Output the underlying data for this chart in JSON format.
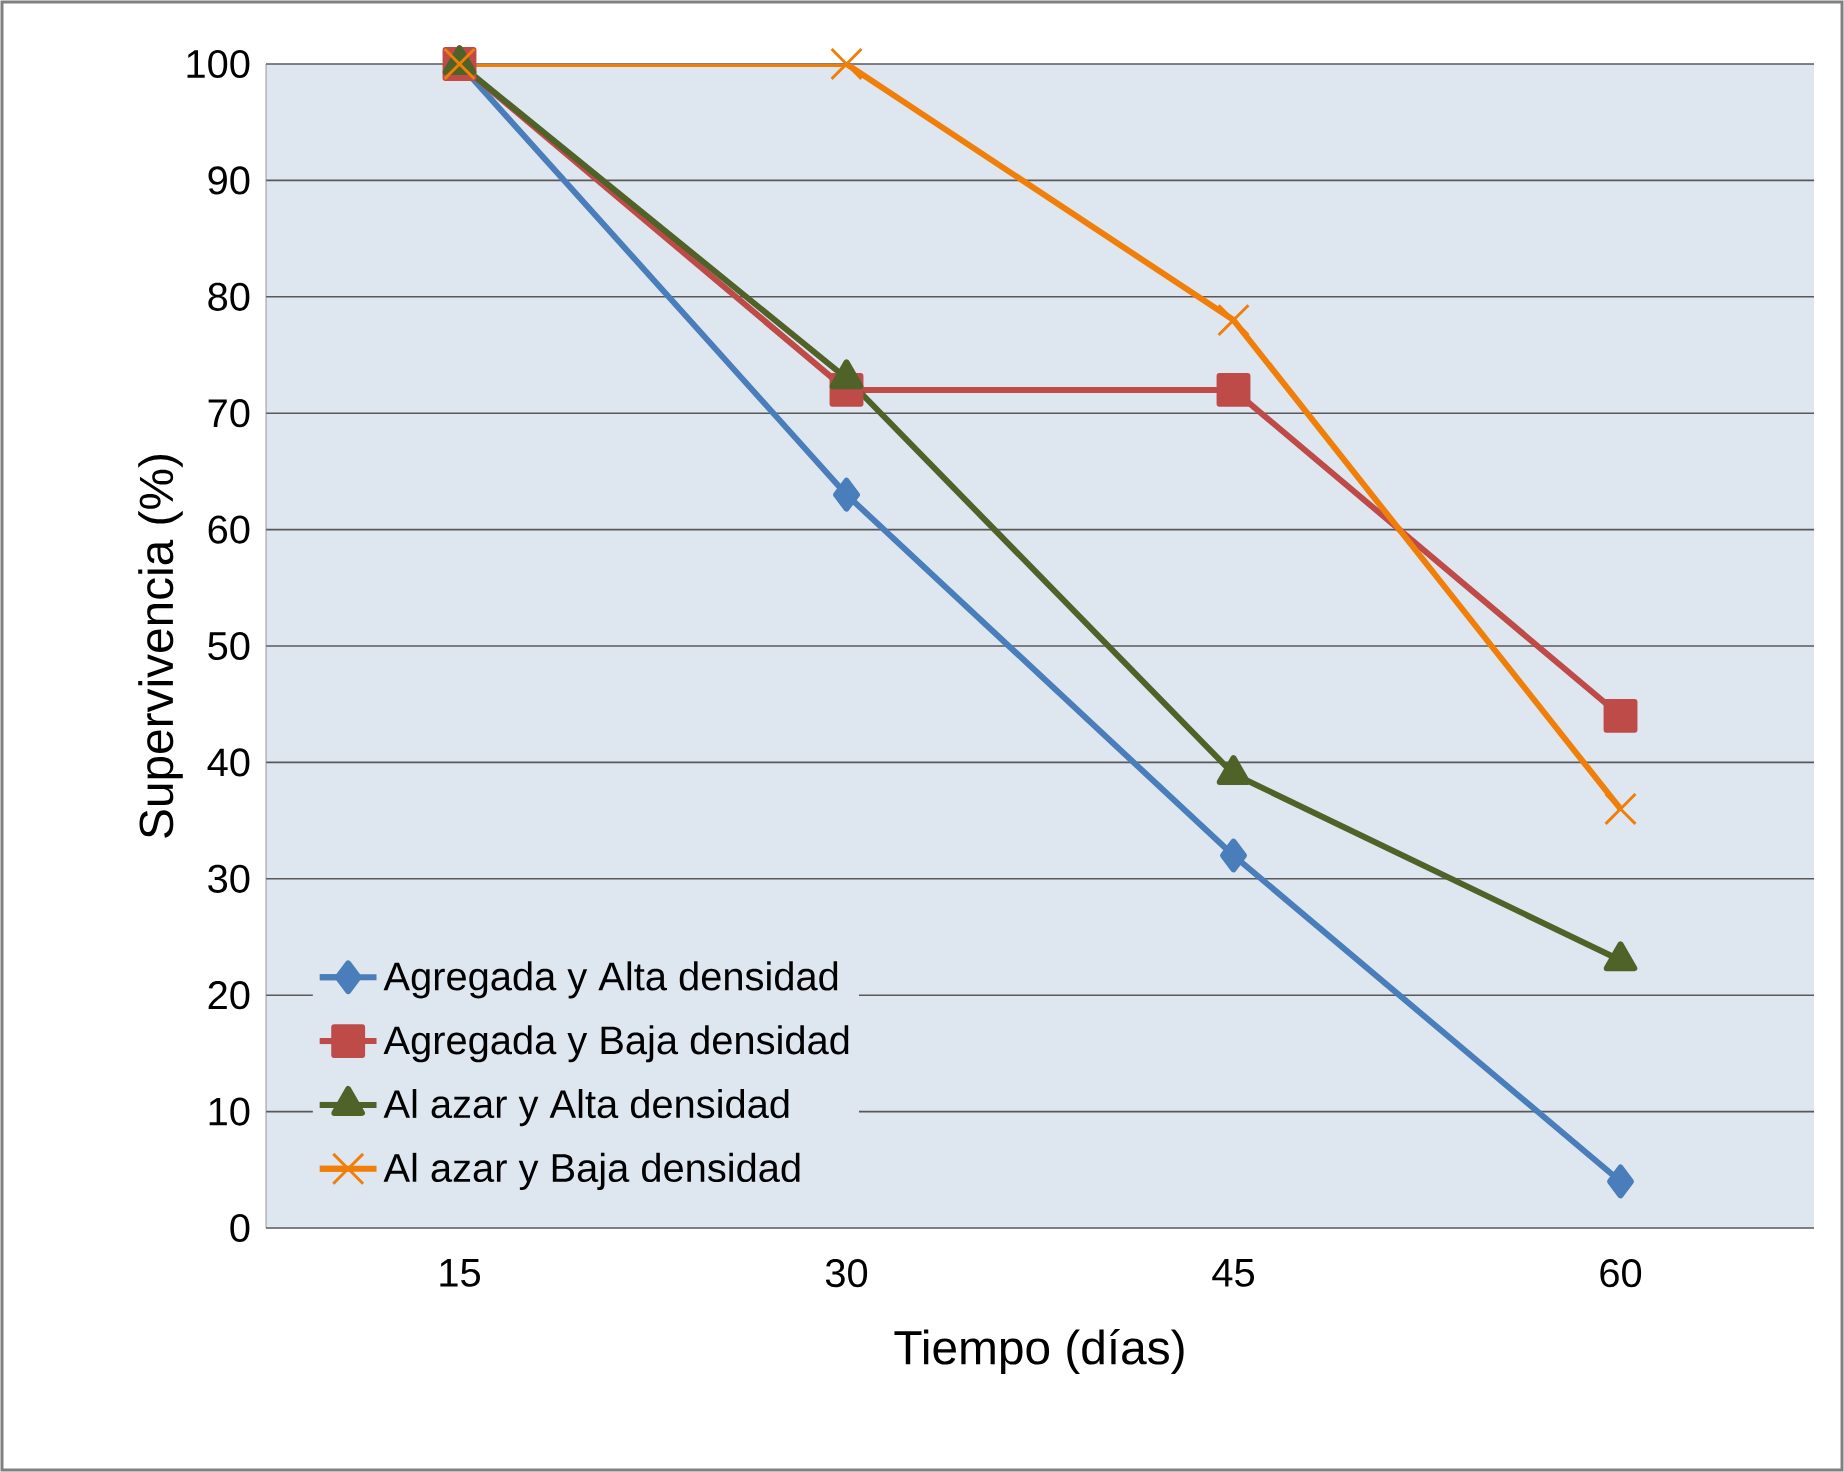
{
  "chart_data": {
    "type": "line",
    "xlabel": "Tiempo (días)",
    "ylabel": "Supervivencia (%)",
    "categories": [
      "15",
      "30",
      "45",
      "60"
    ],
    "series": [
      {
        "name": "Agregada y Alta densidad",
        "color": "#4a7ebb",
        "marker": "diamond",
        "values": [
          100,
          63,
          32,
          4
        ]
      },
      {
        "name": "Agregada y Baja densidad",
        "color": "#be4b48",
        "marker": "square",
        "values": [
          100,
          72,
          72,
          44
        ]
      },
      {
        "name": "Al azar y Alta densidad",
        "color": "#4f6228",
        "marker": "triangle",
        "values": [
          100,
          73,
          39,
          23
        ]
      },
      {
        "name": "Al azar y Baja densidad",
        "color": "#f07f09",
        "marker": "cross",
        "values": [
          100,
          100,
          78,
          36
        ]
      }
    ],
    "ylim": [
      0,
      100
    ],
    "yticks": [
      0,
      10,
      20,
      30,
      40,
      50,
      60,
      70,
      80,
      90,
      100
    ],
    "grid": "y",
    "legend": "bottom left",
    "line_style": "solid"
  }
}
